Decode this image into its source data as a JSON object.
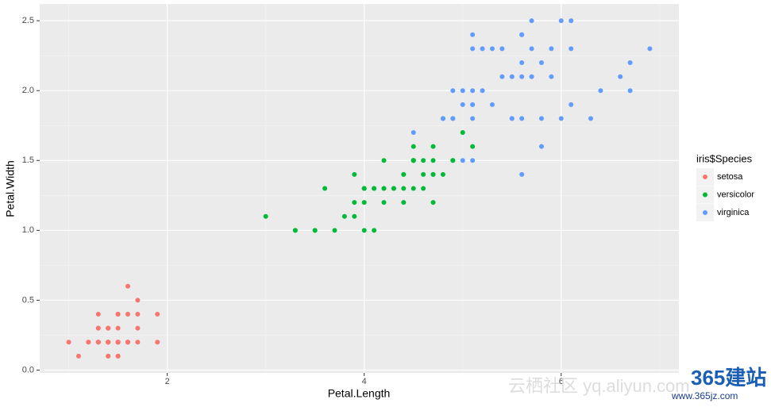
{
  "chart_data": {
    "type": "scatter",
    "x_label": "Petal.Length",
    "y_label": "Petal.Width",
    "legend_title": "iris$Species",
    "legend_position": "right",
    "grid": true,
    "xlim": [
      0.705,
      7.195
    ],
    "ylim": [
      -0.02,
      2.62
    ],
    "xticks": [
      2,
      4,
      6
    ],
    "yticks": [
      {
        "value": 0,
        "label": "0.0"
      },
      {
        "value": 0.5,
        "label": "0.5"
      },
      {
        "value": 1,
        "label": "1.0"
      },
      {
        "value": 1.5,
        "label": "1.5"
      },
      {
        "value": 2,
        "label": "2.0"
      },
      {
        "value": 2.5,
        "label": "2.5"
      }
    ],
    "series": [
      {
        "name": "setosa",
        "color": "#F8766D",
        "x": [
          1.4,
          1.4,
          1.3,
          1.5,
          1.4,
          1.7,
          1.4,
          1.5,
          1.4,
          1.5,
          1.5,
          1.6,
          1.4,
          1.1,
          1.2,
          1.5,
          1.3,
          1.4,
          1.7,
          1.5,
          1.7,
          1.5,
          1.0,
          1.7,
          1.9,
          1.6,
          1.6,
          1.5,
          1.4,
          1.6,
          1.6,
          1.5,
          1.5,
          1.4,
          1.5,
          1.2,
          1.3,
          1.4,
          1.3,
          1.5,
          1.3,
          1.3,
          1.3,
          1.6,
          1.9,
          1.4,
          1.6,
          1.4,
          1.5,
          1.4
        ],
        "values": [
          0.2,
          0.2,
          0.2,
          0.2,
          0.2,
          0.4,
          0.3,
          0.2,
          0.2,
          0.1,
          0.2,
          0.2,
          0.1,
          0.1,
          0.2,
          0.4,
          0.4,
          0.3,
          0.3,
          0.3,
          0.2,
          0.4,
          0.2,
          0.5,
          0.2,
          0.2,
          0.4,
          0.2,
          0.2,
          0.2,
          0.2,
          0.4,
          0.1,
          0.2,
          0.2,
          0.2,
          0.2,
          0.1,
          0.2,
          0.2,
          0.3,
          0.3,
          0.2,
          0.6,
          0.4,
          0.3,
          0.2,
          0.2,
          0.2,
          0.2
        ]
      },
      {
        "name": "versicolor",
        "color": "#00BA38",
        "x": [
          4.7,
          4.5,
          4.9,
          4.0,
          4.6,
          4.5,
          4.7,
          3.3,
          4.6,
          3.9,
          3.5,
          4.2,
          4.0,
          4.7,
          3.6,
          4.4,
          4.5,
          4.1,
          4.5,
          3.9,
          4.8,
          4.0,
          4.9,
          4.7,
          4.3,
          4.4,
          4.8,
          5.0,
          4.5,
          3.5,
          3.8,
          3.7,
          3.9,
          5.1,
          4.5,
          4.5,
          4.7,
          4.4,
          4.1,
          4.0,
          4.4,
          4.6,
          4.0,
          3.3,
          4.2,
          4.2,
          4.2,
          4.3,
          3.0,
          4.1
        ],
        "values": [
          1.4,
          1.5,
          1.5,
          1.3,
          1.5,
          1.3,
          1.6,
          1.0,
          1.3,
          1.4,
          1.0,
          1.5,
          1.0,
          1.4,
          1.3,
          1.4,
          1.5,
          1.0,
          1.5,
          1.1,
          1.8,
          1.3,
          1.5,
          1.2,
          1.3,
          1.4,
          1.4,
          1.7,
          1.5,
          1.0,
          1.1,
          1.0,
          1.2,
          1.6,
          1.5,
          1.6,
          1.5,
          1.3,
          1.3,
          1.3,
          1.2,
          1.4,
          1.2,
          1.0,
          1.3,
          1.2,
          1.3,
          1.3,
          1.1,
          1.3
        ]
      },
      {
        "name": "virginica",
        "color": "#619CFF",
        "x": [
          6.0,
          5.1,
          5.9,
          5.6,
          5.8,
          6.6,
          4.5,
          6.3,
          5.8,
          6.1,
          5.1,
          5.3,
          5.5,
          5.0,
          5.1,
          5.3,
          5.5,
          6.7,
          6.9,
          5.0,
          5.7,
          4.9,
          6.7,
          4.9,
          5.7,
          6.0,
          4.8,
          4.9,
          5.6,
          5.8,
          6.1,
          6.4,
          5.6,
          5.1,
          5.6,
          6.1,
          5.6,
          5.5,
          4.8,
          5.4,
          5.6,
          5.1,
          5.1,
          5.9,
          5.7,
          5.2,
          5.0,
          5.2,
          5.4,
          5.1
        ],
        "values": [
          2.5,
          1.9,
          2.1,
          1.8,
          2.2,
          2.1,
          1.7,
          1.8,
          1.8,
          2.5,
          2.0,
          1.9,
          2.1,
          2.0,
          2.4,
          2.3,
          1.8,
          2.2,
          2.3,
          1.5,
          2.3,
          2.0,
          2.0,
          1.8,
          2.1,
          1.8,
          1.8,
          1.8,
          2.1,
          1.6,
          1.9,
          2.0,
          2.2,
          1.5,
          1.4,
          2.3,
          2.4,
          1.8,
          1.8,
          2.1,
          2.4,
          2.3,
          1.9,
          2.3,
          2.5,
          2.3,
          1.9,
          2.0,
          2.3,
          1.8
        ]
      }
    ],
    "annotations": [
      "云栖社区 yq.aliyun.com",
      "365建站",
      "www.365jz.com"
    ]
  }
}
